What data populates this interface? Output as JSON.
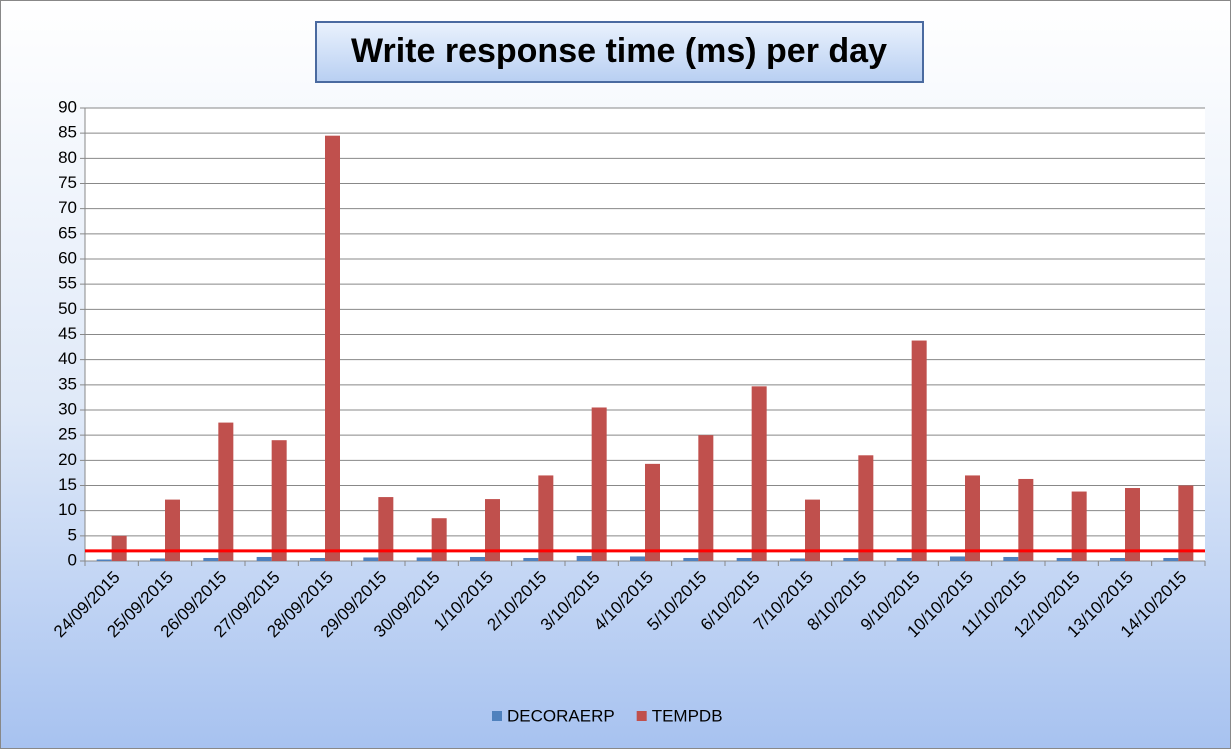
{
  "chart_data": {
    "type": "bar",
    "title": "Write response time (ms) per day",
    "categories": [
      "24/09/2015",
      "25/09/2015",
      "26/09/2015",
      "27/09/2015",
      "28/09/2015",
      "29/09/2015",
      "30/09/2015",
      "1/10/2015",
      "2/10/2015",
      "3/10/2015",
      "4/10/2015",
      "5/10/2015",
      "6/10/2015",
      "7/10/2015",
      "8/10/2015",
      "9/10/2015",
      "10/10/2015",
      "11/10/2015",
      "12/10/2015",
      "13/10/2015",
      "14/10/2015"
    ],
    "series": [
      {
        "name": "DECORAERP",
        "color": "#4f81bd",
        "values": [
          0.3,
          0.5,
          0.6,
          0.8,
          0.6,
          0.7,
          0.7,
          0.8,
          0.6,
          1.0,
          0.9,
          0.6,
          0.6,
          0.5,
          0.6,
          0.6,
          0.9,
          0.8,
          0.6,
          0.6,
          0.6
        ]
      },
      {
        "name": "TEMPDB",
        "color": "#c0504d",
        "values": [
          5,
          12.2,
          27.5,
          24,
          84.5,
          12.7,
          8.5,
          12.3,
          17,
          30.5,
          19.3,
          25,
          34.7,
          12.2,
          21,
          43.8,
          17,
          16.3,
          13.8,
          14.5,
          15
        ]
      }
    ],
    "reference_line": {
      "value": 2,
      "color": "#ff0000"
    },
    "ylim": [
      0,
      90
    ],
    "yticks": [
      0,
      5,
      10,
      15,
      20,
      25,
      30,
      35,
      40,
      45,
      50,
      55,
      60,
      65,
      70,
      75,
      80,
      85,
      90
    ],
    "grid": true,
    "legend": "bottom"
  }
}
